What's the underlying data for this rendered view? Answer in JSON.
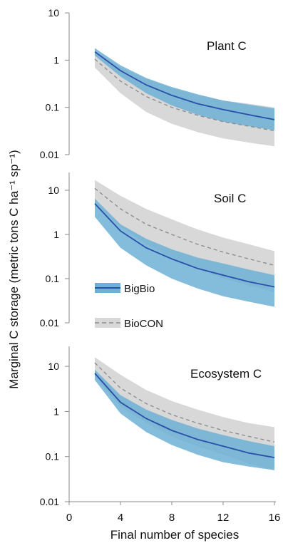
{
  "figure": {
    "ylabel": "Marginal C storage (metric tons C ha⁻¹ sp⁻¹)",
    "xlabel": "Final number of species",
    "colors": {
      "bigbio_line": "#2a4fa8",
      "bigbio_band": "#6fb0d6",
      "biocon_line": "#8a8a8a",
      "biocon_band": "#d8d8d8",
      "axis": "#8a8a8a"
    }
  },
  "legend": {
    "items": [
      {
        "label": "BigBio",
        "style": "solid",
        "color": "#2a4fa8",
        "band": "#6fb0d6"
      },
      {
        "label": "BioCON",
        "style": "dashed",
        "color": "#8a8a8a",
        "band": "#d8d8d8"
      }
    ],
    "placement": "inside soil panel, lower left"
  },
  "chart_data": [
    {
      "type": "line",
      "title": "Plant C",
      "yscale": "log",
      "ylim": [
        0.01,
        10
      ],
      "xlim": [
        0,
        16
      ],
      "x": [
        2,
        4,
        6,
        8,
        10,
        12,
        14,
        16
      ],
      "yticks": [
        "10",
        "1",
        "0.1",
        "0.01"
      ],
      "series": [
        {
          "name": "BigBio",
          "style": "solid",
          "values": [
            1.5,
            0.6,
            0.3,
            0.18,
            0.12,
            0.09,
            0.07,
            0.055
          ],
          "lower": [
            1.25,
            0.45,
            0.2,
            0.11,
            0.07,
            0.05,
            0.04,
            0.033
          ],
          "upper": [
            1.8,
            0.78,
            0.42,
            0.27,
            0.19,
            0.14,
            0.115,
            0.095
          ]
        },
        {
          "name": "BioCON",
          "style": "dashed",
          "values": [
            1.05,
            0.36,
            0.17,
            0.1,
            0.068,
            0.05,
            0.04,
            0.032
          ],
          "lower": [
            0.7,
            0.2,
            0.08,
            0.045,
            0.03,
            0.022,
            0.018,
            0.015
          ],
          "upper": [
            1.6,
            0.7,
            0.4,
            0.26,
            0.18,
            0.14,
            0.12,
            0.1
          ]
        }
      ]
    },
    {
      "type": "line",
      "title": "Soil C",
      "yscale": "log",
      "ylim": [
        0.01,
        20
      ],
      "xlim": [
        0,
        16
      ],
      "x": [
        2,
        4,
        6,
        8,
        10,
        12,
        14,
        16
      ],
      "yticks": [
        "10",
        "1",
        "0.1",
        "0.01"
      ],
      "series": [
        {
          "name": "BigBio",
          "style": "solid",
          "values": [
            5,
            1.2,
            0.5,
            0.28,
            0.17,
            0.12,
            0.085,
            0.065
          ],
          "lower": [
            2.5,
            0.5,
            0.2,
            0.1,
            0.06,
            0.04,
            0.03,
            0.023
          ],
          "upper": [
            6.5,
            1.7,
            0.8,
            0.46,
            0.3,
            0.22,
            0.16,
            0.12
          ]
        },
        {
          "name": "BioCON",
          "style": "dashed",
          "values": [
            11,
            3.8,
            1.7,
            1.0,
            0.6,
            0.4,
            0.28,
            0.2
          ],
          "lower": [
            5,
            1.5,
            0.6,
            0.3,
            0.17,
            0.1,
            0.07,
            0.05
          ],
          "upper": [
            17,
            7.5,
            3.8,
            2.2,
            1.3,
            0.85,
            0.6,
            0.42
          ]
        }
      ]
    },
    {
      "type": "line",
      "title": "Ecosystem C",
      "yscale": "log",
      "ylim": [
        0.01,
        25
      ],
      "xlim": [
        0,
        16
      ],
      "x": [
        2,
        4,
        6,
        8,
        10,
        12,
        14,
        16
      ],
      "yticks": [
        "10",
        "1",
        "0.1",
        "0.01"
      ],
      "xticks": [
        "0",
        "4",
        "8",
        "12",
        "16"
      ],
      "series": [
        {
          "name": "BigBio",
          "style": "solid",
          "values": [
            7,
            1.6,
            0.7,
            0.38,
            0.24,
            0.17,
            0.12,
            0.095
          ],
          "lower": [
            5,
            0.9,
            0.35,
            0.18,
            0.11,
            0.075,
            0.06,
            0.05
          ],
          "upper": [
            8.5,
            2.3,
            1.1,
            0.65,
            0.42,
            0.3,
            0.22,
            0.17
          ]
        },
        {
          "name": "BioCON",
          "style": "dashed",
          "values": [
            12,
            3.3,
            1.5,
            0.85,
            0.55,
            0.38,
            0.28,
            0.21
          ],
          "lower": [
            6,
            1.3,
            0.55,
            0.28,
            0.17,
            0.11,
            0.07,
            0.05
          ],
          "upper": [
            16,
            6.5,
            3.0,
            1.7,
            1.1,
            0.75,
            0.55,
            0.45
          ]
        }
      ]
    }
  ]
}
